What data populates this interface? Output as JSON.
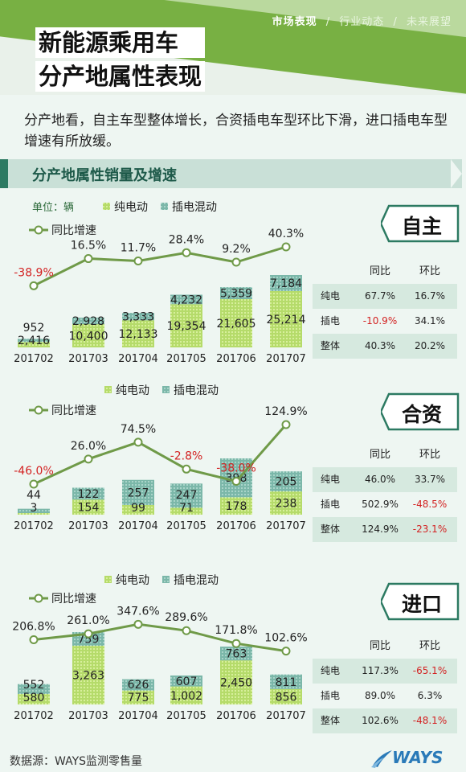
{
  "header": {
    "nav": [
      "市场表现",
      "行业动态",
      "未来展望"
    ],
    "nav_sep": "/",
    "title_line1": "新能源乘用车",
    "title_line2": "分产地属性表现"
  },
  "intro": {
    "text": "分产地看，自主车型整体增长，合资插电车型环比下滑，进口插电车型增速有所放缓。"
  },
  "section": {
    "title": "分产地属性销量及增速"
  },
  "legend": {
    "unit": "单位：辆",
    "bev": "纯电动",
    "phev": "插电混动",
    "growth": "同比增速"
  },
  "colors": {
    "bev": "#b5db6a",
    "phev": "#7bb7a9",
    "line": "#6f9a48",
    "negative": "#d32222",
    "accent": "#78b043"
  },
  "stats_header": {
    "yoy": "同比",
    "mom": "环比"
  },
  "panels": [
    {
      "badge": "自主",
      "stats": [
        {
          "label": "纯电",
          "yoy": "67.7%",
          "mom": "16.7%"
        },
        {
          "label": "插电",
          "yoy": "-10.9%",
          "mom": "34.1%"
        },
        {
          "label": "整体",
          "yoy": "40.3%",
          "mom": "20.2%"
        }
      ]
    },
    {
      "badge": "合资",
      "stats": [
        {
          "label": "纯电",
          "yoy": "46.0%",
          "mom": "33.7%"
        },
        {
          "label": "插电",
          "yoy": "502.9%",
          "mom": "-48.5%"
        },
        {
          "label": "整体",
          "yoy": "124.9%",
          "mom": "-23.1%"
        }
      ]
    },
    {
      "badge": "进口",
      "stats": [
        {
          "label": "纯电",
          "yoy": "117.3%",
          "mom": "-65.1%"
        },
        {
          "label": "插电",
          "yoy": "89.0%",
          "mom": "6.3%"
        },
        {
          "label": "整体",
          "yoy": "102.6%",
          "mom": "-48.1%"
        }
      ]
    }
  ],
  "chart_data": [
    {
      "type": "bar",
      "stacked": true,
      "ylabel": "单位：辆",
      "categories": [
        "201702",
        "201703",
        "201704",
        "201705",
        "201706",
        "201707"
      ],
      "series": [
        {
          "name": "纯电动",
          "values": [
            2416,
            10400,
            12133,
            19354,
            21605,
            25214
          ],
          "labels": [
            "2,416",
            "10,400",
            "12,133",
            "19,354",
            "21,605",
            "25,214"
          ]
        },
        {
          "name": "插电混动",
          "values": [
            952,
            2928,
            3333,
            4232,
            5359,
            7184
          ],
          "labels": [
            "952",
            "2,928",
            "3,333",
            "4,232",
            "5,359",
            "7,184"
          ]
        },
        {
          "name": "同比增速",
          "type": "line",
          "values": [
            -38.9,
            16.5,
            11.7,
            28.4,
            9.2,
            40.3
          ],
          "labels": [
            "-38.9%",
            "16.5%",
            "11.7%",
            "28.4%",
            "9.2%",
            "40.3%"
          ]
        }
      ]
    },
    {
      "type": "bar",
      "stacked": true,
      "categories": [
        "201702",
        "201703",
        "201704",
        "201705",
        "201706",
        "201707"
      ],
      "series": [
        {
          "name": "纯电动",
          "values": [
            3,
            154,
            99,
            71,
            178,
            238
          ],
          "labels": [
            "3",
            "154",
            "99",
            "71",
            "178",
            "238"
          ]
        },
        {
          "name": "插电混动",
          "values": [
            44,
            122,
            257,
            247,
            398,
            205
          ],
          "labels": [
            "44",
            "122",
            "257",
            "247",
            "398",
            "205"
          ]
        },
        {
          "name": "同比增速",
          "type": "line",
          "values": [
            -46.0,
            26.0,
            74.5,
            -2.8,
            -38.0,
            124.9
          ],
          "labels": [
            "-46.0%",
            "26.0%",
            "74.5%",
            "-2.8%",
            "-38.0%",
            "124.9%"
          ]
        }
      ]
    },
    {
      "type": "bar",
      "stacked": true,
      "categories": [
        "201702",
        "201703",
        "201704",
        "201705",
        "201706",
        "201707"
      ],
      "series": [
        {
          "name": "纯电动",
          "values": [
            580,
            3263,
            775,
            1002,
            2450,
            856
          ],
          "labels": [
            "580",
            "3,263",
            "775",
            "1,002",
            "2,450",
            "856"
          ]
        },
        {
          "name": "插电混动",
          "values": [
            552,
            759,
            626,
            607,
            763,
            811
          ],
          "labels": [
            "552",
            "759",
            "626",
            "607",
            "763",
            "811"
          ]
        },
        {
          "name": "同比增速",
          "type": "line",
          "values": [
            206.8,
            261.0,
            347.6,
            289.6,
            171.8,
            102.6
          ],
          "labels": [
            "206.8%",
            "261.0%",
            "347.6%",
            "289.6%",
            "171.8%",
            "102.6%"
          ]
        }
      ]
    }
  ],
  "footer": {
    "source": "数据源：WAYS监测零售量",
    "logo": "WAYS"
  }
}
